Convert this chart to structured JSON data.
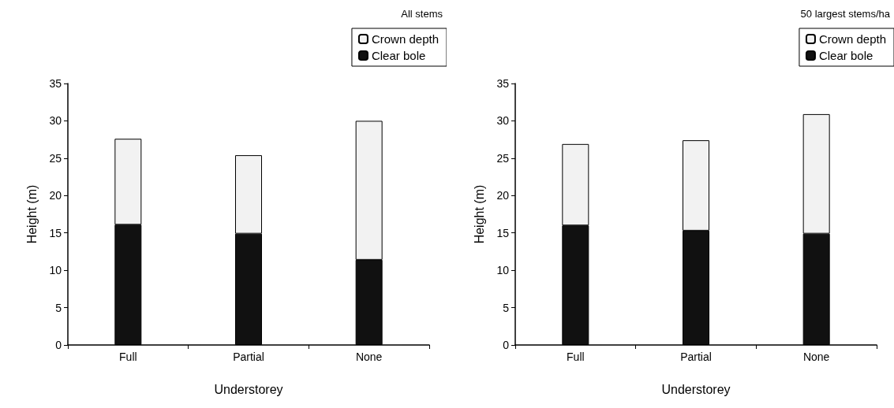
{
  "chart_data": [
    {
      "type": "bar",
      "stacked": true,
      "legend_title": "All stems",
      "legend": "top right",
      "grid": false,
      "xlabel": "Understorey",
      "ylabel": "Height (m)",
      "categories": [
        "Full",
        "Partial",
        "None"
      ],
      "ylim": [
        0,
        35
      ],
      "yticks": [
        0,
        5,
        10,
        15,
        20,
        25,
        30,
        35
      ],
      "series": [
        {
          "name": "Clear bole",
          "color": "#111111",
          "values": [
            16.1,
            14.9,
            11.4
          ]
        },
        {
          "name": "Crown depth",
          "color": "#f2f2f2",
          "values": [
            11.5,
            10.5,
            18.6
          ]
        }
      ]
    },
    {
      "type": "bar",
      "stacked": true,
      "legend_title": "50 largest stems/ha",
      "legend": "top right",
      "grid": false,
      "xlabel": "Understorey",
      "ylabel": "Height (m)",
      "categories": [
        "Full",
        "Partial",
        "None"
      ],
      "ylim": [
        0,
        35
      ],
      "yticks": [
        0,
        5,
        10,
        15,
        20,
        25,
        30,
        35
      ],
      "series": [
        {
          "name": "Clear bole",
          "color": "#111111",
          "values": [
            16.0,
            15.3,
            14.9
          ]
        },
        {
          "name": "Crown depth",
          "color": "#f2f2f2",
          "values": [
            10.9,
            12.1,
            16.0
          ]
        }
      ]
    }
  ]
}
